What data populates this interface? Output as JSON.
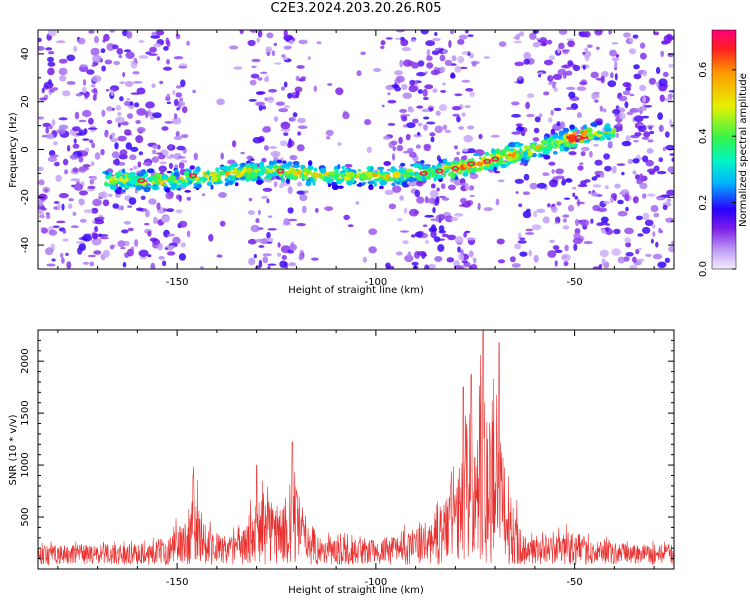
{
  "title": "C2E3.2024.203.20.26.R05",
  "chart_data": [
    {
      "type": "heatmap",
      "xlabel": "Height of straight line (km)",
      "ylabel": "Frequency (Hz)",
      "xlim": [
        -185,
        -25
      ],
      "ylim": [
        -50,
        50
      ],
      "xticks": [
        -150,
        -100,
        -50
      ],
      "yticks": [
        -40,
        -20,
        0,
        20,
        40
      ],
      "colorbar": {
        "label": "Normalized spectral amplitude",
        "range": [
          0.0,
          0.72
        ],
        "ticks": [
          "0.0",
          "0.2",
          "0.4",
          "0.6"
        ]
      },
      "ridge": {
        "description_points": [
          [
            -165,
            -13
          ],
          [
            -150,
            -13
          ],
          [
            -130,
            -9
          ],
          [
            -110,
            -11
          ],
          [
            -95,
            -11
          ],
          [
            -80,
            -8
          ],
          [
            -70,
            -4
          ],
          [
            -62,
            -1
          ],
          [
            -50,
            5
          ],
          [
            -42,
            7
          ]
        ],
        "peak_amplitude": 0.7
      },
      "gaps": [
        [
          -148,
          -132
        ],
        [
          -118,
          -97
        ],
        [
          -75,
          -65
        ]
      ]
    },
    {
      "type": "line",
      "xlabel": "Height of straight line (km)",
      "ylabel": "SNR (10 * v/v)",
      "xlim": [
        -185,
        -25
      ],
      "ylim": [
        0,
        2300
      ],
      "xticks": [
        -150,
        -100,
        -50
      ],
      "yticks": [
        500,
        1000,
        1500,
        2000
      ],
      "color": "#e8302f",
      "envelope": [
        [
          -185,
          180
        ],
        [
          -160,
          190
        ],
        [
          -152,
          260
        ],
        [
          -148,
          420
        ],
        [
          -146,
          700
        ],
        [
          -143,
          400
        ],
        [
          -138,
          230
        ],
        [
          -133,
          330
        ],
        [
          -130,
          600
        ],
        [
          -126,
          620
        ],
        [
          -122,
          520
        ],
        [
          -120,
          720
        ],
        [
          -118,
          500
        ],
        [
          -114,
          240
        ],
        [
          -100,
          230
        ],
        [
          -92,
          300
        ],
        [
          -86,
          420
        ],
        [
          -82,
          700
        ],
        [
          -78,
          1000
        ],
        [
          -75,
          1300
        ],
        [
          -72,
          1500
        ],
        [
          -70,
          1300
        ],
        [
          -67,
          900
        ],
        [
          -65,
          500
        ],
        [
          -62,
          230
        ],
        [
          -50,
          300
        ],
        [
          -45,
          210
        ],
        [
          -25,
          190
        ]
      ],
      "peaks": [
        [
          -146,
          900
        ],
        [
          -130,
          1000
        ],
        [
          -121,
          1220
        ],
        [
          -78,
          1750
        ],
        [
          -76,
          1870
        ],
        [
          -73,
          2290
        ],
        [
          -69,
          2180
        ]
      ]
    }
  ]
}
